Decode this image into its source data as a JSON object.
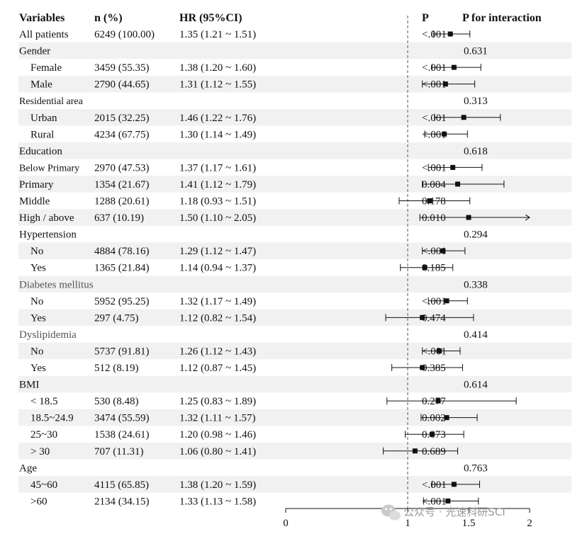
{
  "chart_data": {
    "type": "forest",
    "columns": {
      "variables": "Variables",
      "n": "n (%)",
      "hr": "HR (95%CI)",
      "p": "P",
      "p_interaction": "P for interaction"
    },
    "x_axis": {
      "ticks": [
        0,
        1,
        1.5,
        2
      ],
      "tick_labels": [
        "0",
        "1",
        "1.5",
        "2"
      ],
      "range": [
        0,
        2
      ],
      "reference_line": 1
    },
    "rows": [
      {
        "kind": "item",
        "label": "All patients",
        "indent": false,
        "n": "6249 (100.00)",
        "hr_text": "1.35 (1.21 ~ 1.51)",
        "hr": 1.35,
        "lo": 1.21,
        "hi": 1.51,
        "p": "<.001",
        "shaded": false
      },
      {
        "kind": "group",
        "label": "Gender",
        "p_interaction": "0.631",
        "shaded": true
      },
      {
        "kind": "item",
        "label": "Female",
        "indent": true,
        "n": "3459 (55.35)",
        "hr_text": "1.38 (1.20 ~ 1.60)",
        "hr": 1.38,
        "lo": 1.2,
        "hi": 1.6,
        "p": "<.001",
        "shaded": false
      },
      {
        "kind": "item",
        "label": "Male",
        "indent": true,
        "n": "2790 (44.65)",
        "hr_text": "1.31 (1.12 ~ 1.55)",
        "hr": 1.31,
        "lo": 1.12,
        "hi": 1.55,
        "p": "<.001",
        "shaded": true
      },
      {
        "kind": "group",
        "label": "Residential area",
        "p_interaction": "0.313",
        "shaded": false,
        "small": true
      },
      {
        "kind": "item",
        "label": "Urban",
        "indent": true,
        "n": "2015 (32.25)",
        "hr_text": "1.46 (1.22 ~ 1.76)",
        "hr": 1.46,
        "lo": 1.22,
        "hi": 1.76,
        "p": "<.001",
        "shaded": true
      },
      {
        "kind": "item",
        "label": "Rural",
        "indent": true,
        "n": "4234 (67.75)",
        "hr_text": "1.30 (1.14 ~ 1.49)",
        "hr": 1.3,
        "lo": 1.14,
        "hi": 1.49,
        "p": "<.001",
        "shaded": false
      },
      {
        "kind": "group",
        "label": "Education",
        "p_interaction": "0.618",
        "shaded": true
      },
      {
        "kind": "item",
        "label": "Below Primary",
        "indent": false,
        "n": "2970 (47.53)",
        "hr_text": "1.37 (1.17 ~ 1.61)",
        "hr": 1.37,
        "lo": 1.17,
        "hi": 1.61,
        "p": "<.001",
        "shaded": false
      },
      {
        "kind": "item",
        "label": "Primary",
        "indent": false,
        "n": "1354 (21.67)",
        "hr_text": "1.41 (1.12 ~ 1.79)",
        "hr": 1.41,
        "lo": 1.12,
        "hi": 1.79,
        "p": "0.004",
        "shaded": true
      },
      {
        "kind": "item",
        "label": "Middle",
        "indent": false,
        "n": "1288 (20.61)",
        "hr_text": "1.18 (0.93 ~ 1.51)",
        "hr": 1.18,
        "lo": 0.93,
        "hi": 1.51,
        "p": "0.178",
        "shaded": false
      },
      {
        "kind": "item",
        "label": "High / above",
        "indent": false,
        "n": "637 (10.19)",
        "hr_text": "1.50 (1.10 ~ 2.05)",
        "hr": 1.5,
        "lo": 1.1,
        "hi": 2.05,
        "p": "0.010",
        "shaded": true,
        "arrow": true
      },
      {
        "kind": "group",
        "label": "Hypertension",
        "p_interaction": "0.294",
        "shaded": false
      },
      {
        "kind": "item",
        "label": "No",
        "indent": true,
        "n": "4884 (78.16)",
        "hr_text": "1.29 (1.12 ~ 1.47)",
        "hr": 1.29,
        "lo": 1.12,
        "hi": 1.47,
        "p": "<.001",
        "shaded": true
      },
      {
        "kind": "item",
        "label": "Yes",
        "indent": true,
        "n": "1365 (21.84)",
        "hr_text": "1.14 (0.94 ~ 1.37)",
        "hr": 1.14,
        "lo": 0.94,
        "hi": 1.37,
        "p": "0.185",
        "shaded": false
      },
      {
        "kind": "group",
        "label": "Diabetes mellitus",
        "p_interaction": "0.338",
        "shaded": true,
        "soft": true
      },
      {
        "kind": "item",
        "label": "No",
        "indent": true,
        "n": "5952 (95.25)",
        "hr_text": "1.32 (1.17 ~ 1.49)",
        "hr": 1.32,
        "lo": 1.17,
        "hi": 1.49,
        "p": "<.001",
        "shaded": false
      },
      {
        "kind": "item",
        "label": "Yes",
        "indent": true,
        "n": "297 (4.75)",
        "hr_text": "1.12 (0.82 ~ 1.54)",
        "hr": 1.12,
        "lo": 0.82,
        "hi": 1.54,
        "p": "0.474",
        "shaded": true
      },
      {
        "kind": "group",
        "label": "Dyslipidemia",
        "p_interaction": "0.414",
        "shaded": false,
        "soft": true
      },
      {
        "kind": "item",
        "label": "No",
        "indent": true,
        "n": "5737 (91.81)",
        "hr_text": "1.26 (1.12 ~ 1.43)",
        "hr": 1.26,
        "lo": 1.12,
        "hi": 1.43,
        "p": "<.001",
        "shaded": true
      },
      {
        "kind": "item",
        "label": "Yes",
        "indent": true,
        "n": "512 (8.19)",
        "hr_text": "1.12 (0.87 ~ 1.45)",
        "hr": 1.12,
        "lo": 0.87,
        "hi": 1.45,
        "p": "0.385",
        "shaded": false
      },
      {
        "kind": "group",
        "label": "BMI",
        "p_interaction": "0.614",
        "shaded": true
      },
      {
        "kind": "item",
        "label": "< 18.5",
        "indent": true,
        "n": "530 (8.48)",
        "hr_text": "1.25 (0.83 ~ 1.89)",
        "hr": 1.25,
        "lo": 0.83,
        "hi": 1.89,
        "p": "0.277",
        "shaded": false
      },
      {
        "kind": "item",
        "label": "18.5~24.9",
        "indent": true,
        "n": "3474 (55.59)",
        "hr_text": "1.32 (1.11 ~ 1.57)",
        "hr": 1.32,
        "lo": 1.11,
        "hi": 1.57,
        "p": "0.002",
        "shaded": true
      },
      {
        "kind": "item",
        "label": "25~30",
        "indent": true,
        "n": "1538 (24.61)",
        "hr_text": "1.20 (0.98 ~ 1.46)",
        "hr": 1.2,
        "lo": 0.98,
        "hi": 1.46,
        "p": "0.073",
        "shaded": false
      },
      {
        "kind": "item",
        "label": "> 30",
        "indent": true,
        "n": "707 (11.31)",
        "hr_text": "1.06 (0.80 ~ 1.41)",
        "hr": 1.06,
        "lo": 0.8,
        "hi": 1.41,
        "p": "0.689",
        "shaded": true
      },
      {
        "kind": "group",
        "label": "Age",
        "p_interaction": "0.763",
        "shaded": false
      },
      {
        "kind": "item",
        "label": "45~60",
        "indent": true,
        "n": "4115 (65.85)",
        "hr_text": "1.38 (1.20 ~ 1.59)",
        "hr": 1.38,
        "lo": 1.2,
        "hi": 1.59,
        "p": "<.001",
        "shaded": true
      },
      {
        "kind": "item",
        "label": ">60",
        "indent": true,
        "n": "2134 (34.15)",
        "hr_text": "1.33 (1.13 ~ 1.58)",
        "hr": 1.33,
        "lo": 1.13,
        "hi": 1.58,
        "p": "<.001",
        "shaded": false
      }
    ]
  },
  "watermark": {
    "text": "公众号 · 光速科研SCI",
    "icon": "wechat-icon"
  }
}
